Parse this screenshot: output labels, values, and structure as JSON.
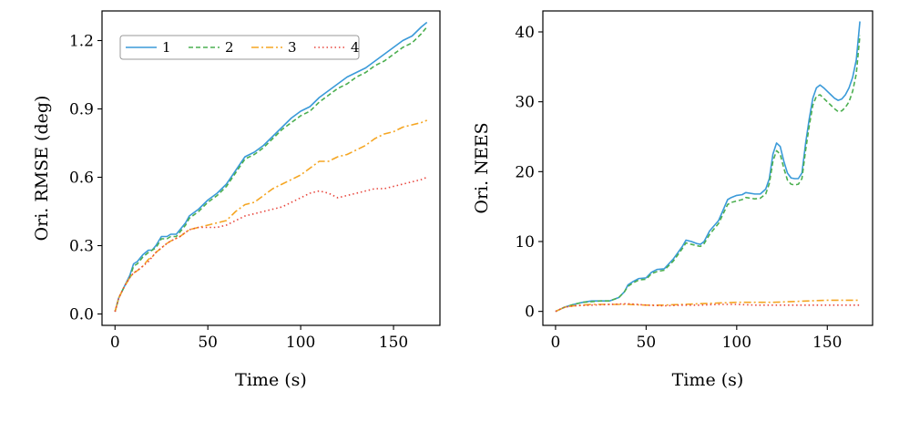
{
  "chart_data": [
    {
      "type": "line",
      "xlabel": "Time (s)",
      "ylabel": "Ori. RMSE (deg)",
      "xlim": [
        -7,
        175
      ],
      "ylim": [
        -0.05,
        1.33
      ],
      "xticks": [
        0,
        50,
        100,
        150
      ],
      "yticks": [
        0.0,
        0.3,
        0.6,
        0.9,
        1.2
      ],
      "ytick_labels": [
        "0.0",
        "0.3",
        "0.6",
        "0.9",
        "1.2"
      ],
      "legend": {
        "position": "top-left",
        "ncol": 4,
        "entries": [
          "1",
          "2",
          "3",
          "4"
        ]
      },
      "series": [
        {
          "name": "1",
          "style": "solid",
          "color": "#3a9ad9",
          "x": [
            0,
            2,
            5,
            8,
            10,
            12,
            15,
            18,
            20,
            22,
            25,
            28,
            30,
            33,
            36,
            38,
            40,
            45,
            50,
            55,
            60,
            65,
            70,
            75,
            80,
            85,
            90,
            95,
            100,
            105,
            110,
            115,
            120,
            125,
            130,
            135,
            140,
            145,
            150,
            155,
            160,
            165,
            168
          ],
          "y": [
            0.01,
            0.07,
            0.12,
            0.17,
            0.22,
            0.23,
            0.26,
            0.28,
            0.28,
            0.3,
            0.34,
            0.34,
            0.35,
            0.35,
            0.38,
            0.4,
            0.43,
            0.46,
            0.5,
            0.53,
            0.57,
            0.63,
            0.69,
            0.71,
            0.74,
            0.78,
            0.82,
            0.86,
            0.89,
            0.91,
            0.95,
            0.98,
            1.01,
            1.04,
            1.06,
            1.08,
            1.11,
            1.14,
            1.17,
            1.2,
            1.22,
            1.26,
            1.28
          ]
        },
        {
          "name": "2",
          "style": "dashed",
          "color": "#4caf50",
          "x": [
            0,
            2,
            5,
            8,
            10,
            12,
            15,
            18,
            20,
            22,
            25,
            28,
            30,
            33,
            36,
            38,
            40,
            45,
            50,
            55,
            60,
            65,
            70,
            75,
            80,
            85,
            90,
            95,
            100,
            105,
            110,
            115,
            120,
            125,
            130,
            135,
            140,
            145,
            150,
            155,
            160,
            165,
            168
          ],
          "y": [
            0.01,
            0.07,
            0.12,
            0.16,
            0.21,
            0.22,
            0.25,
            0.27,
            0.28,
            0.29,
            0.33,
            0.33,
            0.34,
            0.34,
            0.37,
            0.39,
            0.42,
            0.45,
            0.49,
            0.52,
            0.56,
            0.62,
            0.68,
            0.7,
            0.73,
            0.77,
            0.81,
            0.84,
            0.87,
            0.89,
            0.93,
            0.96,
            0.99,
            1.01,
            1.04,
            1.06,
            1.09,
            1.11,
            1.14,
            1.17,
            1.19,
            1.23,
            1.26
          ]
        },
        {
          "name": "3",
          "style": "dashdot",
          "color": "#f5a623",
          "x": [
            0,
            2,
            5,
            8,
            10,
            12,
            15,
            18,
            20,
            22,
            25,
            28,
            30,
            35,
            40,
            45,
            50,
            55,
            60,
            65,
            70,
            75,
            80,
            85,
            90,
            95,
            100,
            105,
            110,
            115,
            120,
            125,
            130,
            135,
            140,
            145,
            150,
            155,
            160,
            165,
            168
          ],
          "y": [
            0.01,
            0.07,
            0.12,
            0.16,
            0.18,
            0.19,
            0.21,
            0.24,
            0.25,
            0.27,
            0.29,
            0.31,
            0.32,
            0.34,
            0.37,
            0.38,
            0.39,
            0.4,
            0.41,
            0.45,
            0.48,
            0.49,
            0.52,
            0.55,
            0.57,
            0.59,
            0.61,
            0.64,
            0.67,
            0.67,
            0.69,
            0.7,
            0.72,
            0.74,
            0.77,
            0.79,
            0.8,
            0.82,
            0.83,
            0.84,
            0.85
          ]
        },
        {
          "name": "4",
          "style": "dotted",
          "color": "#e8453c",
          "x": [
            0,
            2,
            5,
            8,
            10,
            12,
            15,
            18,
            20,
            22,
            25,
            28,
            30,
            35,
            40,
            45,
            50,
            55,
            60,
            65,
            70,
            75,
            80,
            85,
            90,
            95,
            100,
            105,
            110,
            115,
            120,
            125,
            130,
            135,
            140,
            145,
            150,
            155,
            160,
            165,
            168
          ],
          "y": [
            0.01,
            0.07,
            0.12,
            0.16,
            0.18,
            0.19,
            0.21,
            0.23,
            0.25,
            0.27,
            0.29,
            0.31,
            0.32,
            0.34,
            0.37,
            0.38,
            0.38,
            0.38,
            0.39,
            0.41,
            0.43,
            0.44,
            0.45,
            0.46,
            0.47,
            0.49,
            0.51,
            0.53,
            0.54,
            0.53,
            0.51,
            0.52,
            0.53,
            0.54,
            0.55,
            0.55,
            0.56,
            0.57,
            0.58,
            0.59,
            0.6
          ]
        }
      ]
    },
    {
      "type": "line",
      "xlabel": "Time (s)",
      "ylabel": "Ori. NEES",
      "xlim": [
        -7,
        175
      ],
      "ylim": [
        -2,
        43
      ],
      "xticks": [
        0,
        50,
        100,
        150
      ],
      "yticks": [
        0,
        10,
        20,
        30,
        40
      ],
      "ytick_labels": [
        "0",
        "10",
        "20",
        "30",
        "40"
      ],
      "series": [
        {
          "name": "1",
          "style": "solid",
          "color": "#3a9ad9",
          "x": [
            0,
            5,
            10,
            15,
            20,
            25,
            30,
            35,
            38,
            40,
            43,
            46,
            50,
            53,
            56,
            60,
            65,
            70,
            72,
            75,
            78,
            80,
            82,
            85,
            90,
            95,
            97,
            100,
            103,
            105,
            110,
            113,
            116,
            118,
            120,
            122,
            124,
            126,
            128,
            130,
            132,
            134,
            136,
            138,
            140,
            142,
            144,
            146,
            148,
            150,
            152,
            154,
            156,
            158,
            160,
            162,
            164,
            166,
            168
          ],
          "y": [
            0,
            0.6,
            1.0,
            1.3,
            1.5,
            1.5,
            1.5,
            2.0,
            2.8,
            3.8,
            4.3,
            4.7,
            4.8,
            5.6,
            6.0,
            6.1,
            7.5,
            9.3,
            10.2,
            10.0,
            9.7,
            9.6,
            10.0,
            11.5,
            13.0,
            16.0,
            16.3,
            16.6,
            16.7,
            17.0,
            16.8,
            16.8,
            17.5,
            19.0,
            22.5,
            24.1,
            23.6,
            21.5,
            19.8,
            19.1,
            19.0,
            19.0,
            19.8,
            24.0,
            27.5,
            30.5,
            32.0,
            32.4,
            32.0,
            31.5,
            31.0,
            30.5,
            30.2,
            30.4,
            31.0,
            32.0,
            33.5,
            36.0,
            41.5
          ]
        },
        {
          "name": "2",
          "style": "dashed",
          "color": "#4caf50",
          "x": [
            0,
            5,
            10,
            15,
            20,
            25,
            30,
            35,
            38,
            40,
            43,
            46,
            50,
            53,
            56,
            60,
            65,
            70,
            72,
            75,
            78,
            80,
            82,
            85,
            90,
            95,
            97,
            100,
            103,
            105,
            110,
            113,
            116,
            118,
            120,
            122,
            124,
            126,
            128,
            130,
            132,
            134,
            136,
            138,
            140,
            142,
            144,
            146,
            148,
            150,
            152,
            154,
            156,
            158,
            160,
            162,
            164,
            166,
            168
          ],
          "y": [
            0,
            0.6,
            1.0,
            1.3,
            1.4,
            1.5,
            1.5,
            2.0,
            2.8,
            3.6,
            4.1,
            4.5,
            4.6,
            5.4,
            5.7,
            5.9,
            7.2,
            9.0,
            9.8,
            9.6,
            9.4,
            9.3,
            9.7,
            11.0,
            12.6,
            15.3,
            15.6,
            15.8,
            16.0,
            16.3,
            16.1,
            16.2,
            16.8,
            18.3,
            21.5,
            23.0,
            22.5,
            20.5,
            18.8,
            18.2,
            18.1,
            18.2,
            19.0,
            23.0,
            26.5,
            29.5,
            30.8,
            31.0,
            30.5,
            30.0,
            29.5,
            29.0,
            28.6,
            28.7,
            29.2,
            30.0,
            31.5,
            34.0,
            39.5
          ]
        },
        {
          "name": "3",
          "style": "dashdot",
          "color": "#f5a623",
          "x": [
            0,
            5,
            10,
            20,
            30,
            40,
            50,
            60,
            70,
            80,
            90,
            100,
            110,
            120,
            130,
            140,
            150,
            160,
            168
          ],
          "y": [
            0,
            0.6,
            0.8,
            1.0,
            1.0,
            1.0,
            0.9,
            0.9,
            1.0,
            1.1,
            1.2,
            1.3,
            1.3,
            1.3,
            1.4,
            1.5,
            1.6,
            1.6,
            1.6
          ]
        },
        {
          "name": "4",
          "style": "dotted",
          "color": "#e8453c",
          "x": [
            0,
            5,
            10,
            20,
            30,
            40,
            50,
            60,
            70,
            80,
            90,
            100,
            110,
            120,
            130,
            140,
            150,
            160,
            168
          ],
          "y": [
            0,
            0.6,
            0.8,
            0.9,
            1.0,
            1.1,
            0.9,
            0.8,
            0.9,
            0.9,
            1.0,
            1.0,
            0.9,
            0.9,
            0.9,
            0.9,
            0.9,
            0.9,
            0.9
          ]
        }
      ]
    }
  ]
}
